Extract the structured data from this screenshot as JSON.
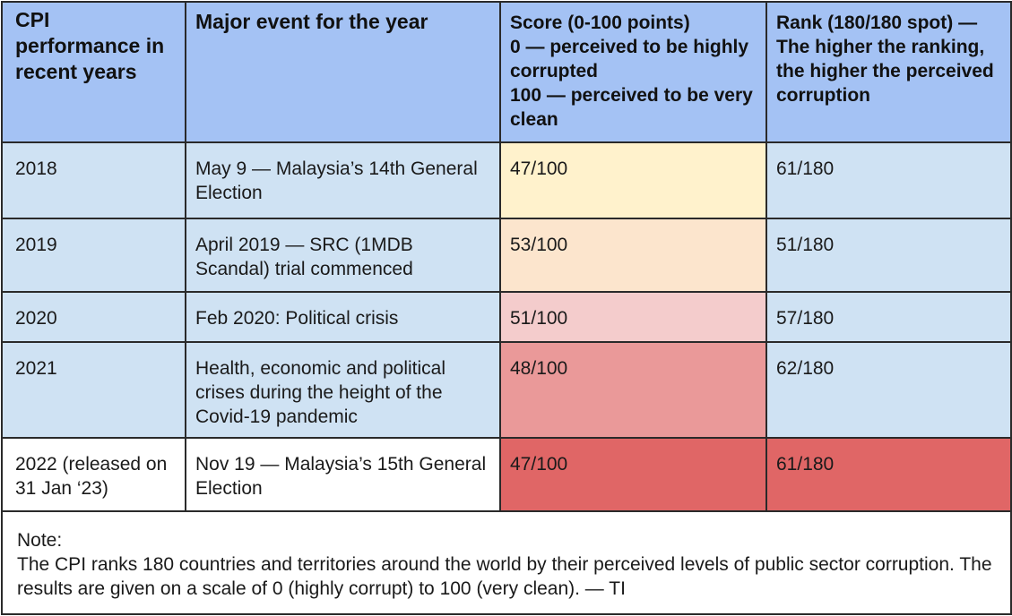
{
  "table": {
    "headers": [
      "CPI performance in recent years",
      "Major event for the year",
      [
        "Score (0-100 points)",
        "0 — perceived to be highly corrupted",
        "100 — perceived to be very clean"
      ],
      "Rank (180/180 spot) — The higher the ranking, the higher the perceived corruption"
    ],
    "header_color": "#a4c2f4",
    "rows": [
      {
        "year": "2018",
        "event": "May 9 — Malaysia’s 14th General Election",
        "score": "47/100",
        "rank": "61/180",
        "row_color": "#cfe2f3",
        "score_color": "#fff2cc",
        "rank_color": "#cfe2f3"
      },
      {
        "year": "2019",
        "event": "April 2019 — SRC (1MDB Scandal) trial commenced",
        "score": "53/100",
        "rank": "51/180",
        "row_color": "#cfe2f3",
        "score_color": "#fce5cd",
        "rank_color": "#cfe2f3"
      },
      {
        "year": "2020",
        "event": "Feb 2020: Political crisis",
        "score": "51/100",
        "rank": "57/180",
        "row_color": "#cfe2f3",
        "score_color": "#f4cccc",
        "rank_color": "#cfe2f3"
      },
      {
        "year": "2021",
        "event": "Health, economic and political crises during the height of the Covid-19 pandemic",
        "score": "48/100",
        "rank": "62/180",
        "row_color": "#cfe2f3",
        "score_color": "#ea9999",
        "rank_color": "#cfe2f3"
      },
      {
        "year": "2022 (released on 31 Jan ‘23)",
        "event": "Nov 19 — Malaysia’s 15th General Election",
        "score": "47/100",
        "rank": "61/180",
        "row_color": "#ffffff",
        "score_color": "#e06666",
        "rank_color": "#e06666"
      }
    ],
    "note": {
      "label": "Note:",
      "text": "The CPI ranks 180 countries and territories around the world by their perceived levels of public sector corruption. The results are given on a scale of 0 (highly corrupt) to 100 (very clean). — TI"
    }
  }
}
